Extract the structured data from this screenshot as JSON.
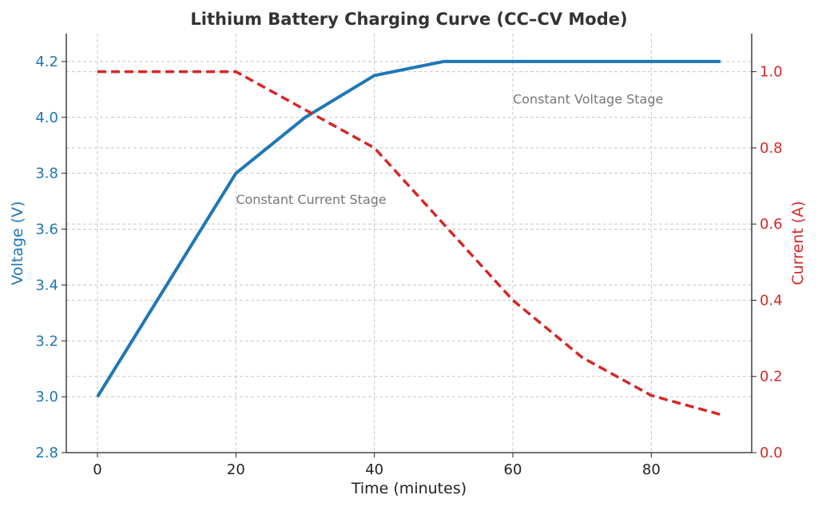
{
  "chart_data": {
    "type": "line",
    "title": "Lithium Battery Charging Curve (CC–CV Mode)",
    "xlabel": "Time (minutes)",
    "ylabel_left": "Voltage (V)",
    "ylabel_right": "Current (A)",
    "xlim": [
      -4.5,
      94.5
    ],
    "ylim_left": [
      2.8,
      4.3
    ],
    "ylim_right": [
      0.0,
      1.1
    ],
    "x_ticks": [
      0,
      20,
      40,
      60,
      80
    ],
    "y_ticks_left": [
      "2.8",
      "3.0",
      "3.2",
      "3.4",
      "3.6",
      "3.8",
      "4.0",
      "4.2"
    ],
    "y_ticks_right": [
      "0.0",
      "0.2",
      "0.4",
      "0.6",
      "0.8",
      "1.0"
    ],
    "grid": true,
    "x": [
      0,
      10,
      20,
      30,
      40,
      50,
      60,
      70,
      80,
      90
    ],
    "series": [
      {
        "name": "Voltage",
        "axis": "left",
        "style": "solid",
        "color": "#1f77b4",
        "values": [
          3.0,
          3.4,
          3.8,
          4.0,
          4.15,
          4.2,
          4.2,
          4.2,
          4.2,
          4.2
        ]
      },
      {
        "name": "Current",
        "axis": "right",
        "style": "dashed",
        "color": "#d62728",
        "values": [
          1.0,
          1.0,
          1.0,
          0.9,
          0.8,
          0.6,
          0.4,
          0.25,
          0.15,
          0.1
        ]
      }
    ],
    "annotations": [
      {
        "text": "Constant Current Stage",
        "x": 20,
        "y": 3.69
      },
      {
        "text": "Constant Voltage Stage",
        "x": 60,
        "y": 4.05
      }
    ]
  }
}
